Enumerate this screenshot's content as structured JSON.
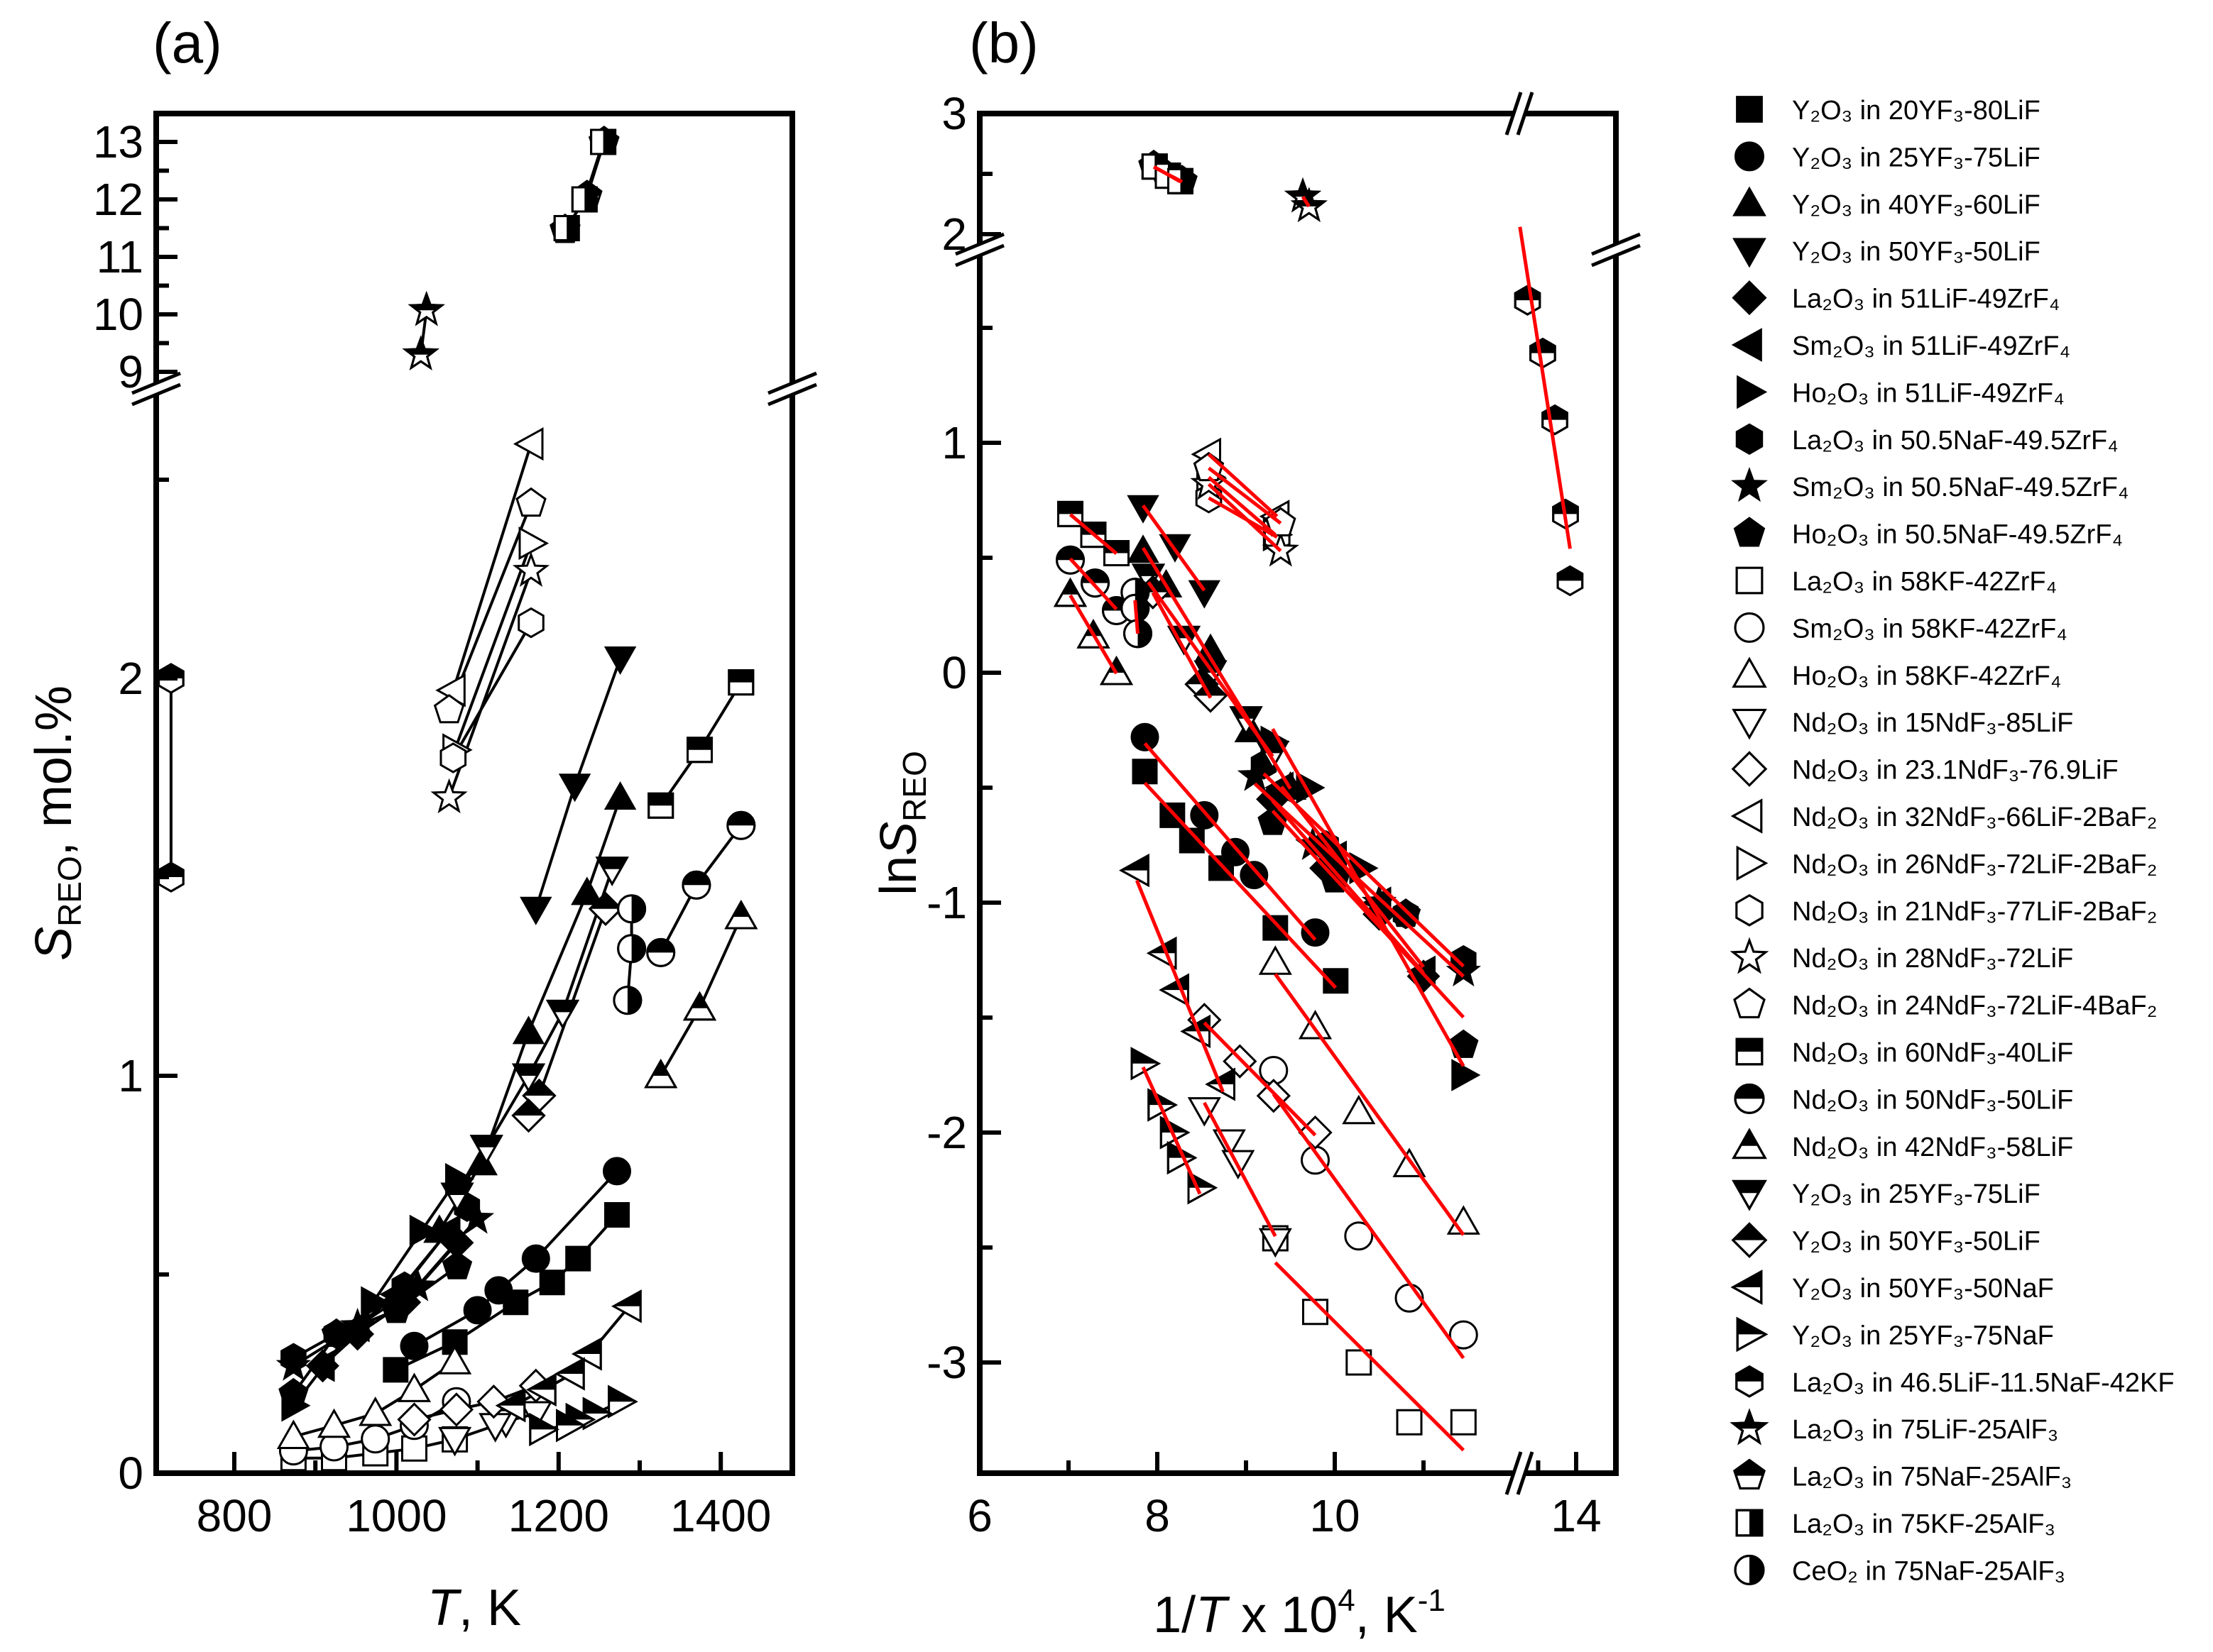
{
  "panels": {
    "a": "(a)",
    "b": "(b)"
  },
  "axis_titles": {
    "a_y": {
      "main": "S",
      "sub": "REO",
      "rest": ", mol.%"
    },
    "a_x": {
      "main": "T",
      "rest": ", K"
    },
    "b_y": {
      "pre": "ln",
      "main": "S",
      "sub": "REO"
    },
    "b_x": {
      "pre": "1/",
      "main": "T",
      "mid": " x 10",
      "sup": "4",
      "rest": ", K",
      "sup2": "-1"
    }
  },
  "colors": {
    "fit_line": "#ff0000",
    "marker": "#000000",
    "connect_line": "#000000"
  },
  "chart_data": [
    {
      "type": "scatter",
      "panel": "a",
      "xlabel": "T, K",
      "ylabel": "S_REO, mol.%",
      "xlim": [
        700,
        1490
      ],
      "x_ticks": [
        800,
        1000,
        1200,
        1400
      ],
      "x_minor": [
        900,
        1100,
        1300
      ],
      "y_broken": true,
      "y_lower_range": [
        0,
        2.72
      ],
      "y_upper_range": [
        9,
        13.5
      ],
      "y_ticks_lower": [
        0,
        1,
        2
      ],
      "y_minor_lower": [
        0.5,
        1.5,
        2.5
      ],
      "y_ticks_upper": [
        9,
        10,
        11,
        12,
        13
      ],
      "y_minor_upper": [
        9.5,
        10.5,
        11.5,
        12.5
      ],
      "lines": "connected points (black)"
    },
    {
      "type": "scatter",
      "panel": "b",
      "xlabel": "1/T x 10^4, K^-1",
      "ylabel": "lnS_REO",
      "x_broken": true,
      "x_main_range": [
        6,
        12.1
      ],
      "x_after_break_range": [
        13.2,
        14.47
      ],
      "x_ticks": [
        6,
        8,
        10,
        14
      ],
      "x_minor": [
        7,
        9,
        11,
        13.5
      ],
      "y_broken": true,
      "y_lower_range": [
        -3.49,
        1.81
      ],
      "y_upper_range": [
        1.91,
        3
      ],
      "y_ticks_lower": [
        -3,
        -2,
        -1,
        0,
        1
      ],
      "y_minor_lower": [
        -2.5,
        -1.5,
        -0.5,
        0.5,
        1.5
      ],
      "y_ticks_upper": [
        2,
        3
      ],
      "y_minor_upper": [
        2.5
      ],
      "lines": "linear fits (red)"
    }
  ],
  "legend": {
    "placement": "right"
  },
  "series": [
    {
      "label": "Y₂O₃ in 20YF₃-80LiF",
      "marker": "square",
      "fill": "filled",
      "a": [
        [
          1272,
          0.65
        ],
        [
          1224,
          0.54
        ],
        [
          1192,
          0.48
        ],
        [
          1147,
          0.43
        ],
        [
          1072,
          0.33
        ],
        [
          999,
          0.26
        ]
      ],
      "b": [
        [
          7.86,
          -0.43
        ],
        [
          8.17,
          -0.62
        ],
        [
          8.39,
          -0.73
        ],
        [
          8.72,
          -0.85
        ],
        [
          9.33,
          -1.11
        ],
        [
          10.01,
          -1.34
        ]
      ]
    },
    {
      "label": "Y₂O₃ in 25YF₃-75LiF",
      "marker": "circle",
      "fill": "filled",
      "a": [
        [
          1272,
          0.76
        ],
        [
          1172,
          0.54
        ],
        [
          1126,
          0.46
        ],
        [
          1100,
          0.41
        ],
        [
          1022,
          0.32
        ]
      ],
      "b": [
        [
          7.86,
          -0.28
        ],
        [
          8.53,
          -0.62
        ],
        [
          8.88,
          -0.78
        ],
        [
          9.09,
          -0.88
        ],
        [
          9.78,
          -1.13
        ]
      ]
    },
    {
      "label": "Y₂O₃ in 40YF₃-60LiF",
      "marker": "triangle-up",
      "fill": "filled",
      "a": [
        [
          1276,
          1.7
        ],
        [
          1235,
          1.46
        ],
        [
          1163,
          1.11
        ],
        [
          1105,
          0.78
        ],
        [
          1053,
          0.61
        ]
      ],
      "b": [
        [
          7.84,
          0.53
        ],
        [
          8.1,
          0.38
        ],
        [
          8.6,
          0.1
        ],
        [
          9.05,
          -0.25
        ],
        [
          9.5,
          -0.5
        ]
      ]
    },
    {
      "label": "Y₂O₃ in 50YF₃-50LiF",
      "marker": "triangle-down",
      "fill": "filled",
      "a": [
        [
          1276,
          2.05
        ],
        [
          1220,
          1.73
        ],
        [
          1172,
          1.42
        ]
      ],
      "b": [
        [
          7.84,
          0.72
        ],
        [
          8.2,
          0.55
        ],
        [
          8.53,
          0.35
        ]
      ]
    },
    {
      "label": "La₂O₃ in 51LiF-49ZrF₄",
      "marker": "diamond",
      "fill": "filled",
      "a": [
        [
          1075,
          0.58
        ],
        [
          1010,
          0.43
        ],
        [
          952,
          0.35
        ],
        [
          909,
          0.27
        ]
      ],
      "b": [
        [
          9.3,
          -0.55
        ],
        [
          9.9,
          -0.85
        ],
        [
          10.5,
          -1.05
        ],
        [
          11.0,
          -1.32
        ]
      ]
    },
    {
      "label": "Sm₂O₃ in 51LiF-49ZrF₄",
      "marker": "triangle-left",
      "fill": "filled",
      "a": [
        [
          1064,
          0.61
        ],
        [
          1000,
          0.45
        ],
        [
          952,
          0.37
        ],
        [
          909,
          0.27
        ]
      ],
      "b": [
        [
          9.4,
          -0.5
        ],
        [
          10.0,
          -0.8
        ],
        [
          10.5,
          -1.0
        ],
        [
          11.0,
          -1.3
        ]
      ]
    },
    {
      "label": "Ho₂O₃ in 51LiF-49ZrF₄",
      "marker": "triangle-right",
      "fill": "filled",
      "a": [
        [
          1075,
          0.74
        ],
        [
          1031,
          0.61
        ],
        [
          971,
          0.43
        ],
        [
          873,
          0.17
        ]
      ],
      "b": [
        [
          9.3,
          -0.3
        ],
        [
          9.7,
          -0.5
        ],
        [
          10.3,
          -0.85
        ],
        [
          11.45,
          -1.75
        ]
      ]
    },
    {
      "label": "La₂O₃ in 50.5NaF-49.5ZrF₄",
      "marker": "hexagon",
      "fill": "filled",
      "a": [
        [
          1087,
          0.67
        ],
        [
          1010,
          0.47
        ],
        [
          926,
          0.35
        ],
        [
          873,
          0.29
        ]
      ],
      "b": [
        [
          9.2,
          -0.4
        ],
        [
          9.9,
          -0.75
        ],
        [
          10.8,
          -1.05
        ],
        [
          11.45,
          -1.25
        ]
      ]
    },
    {
      "label": "Sm₂O₃ in 50.5NaF-49.5ZrF₄",
      "marker": "star",
      "fill": "filled",
      "a": [
        [
          1099,
          0.64
        ],
        [
          1026,
          0.47
        ],
        [
          952,
          0.37
        ],
        [
          873,
          0.27
        ]
      ],
      "b": [
        [
          9.1,
          -0.45
        ],
        [
          9.75,
          -0.75
        ],
        [
          10.5,
          -1.0
        ],
        [
          11.45,
          -1.3
        ]
      ]
    },
    {
      "label": "Ho₂O₃ in 50.5NaF-49.5ZrF₄",
      "marker": "pentagon",
      "fill": "filled",
      "a": [
        [
          1075,
          0.52
        ],
        [
          1000,
          0.41
        ],
        [
          926,
          0.35
        ],
        [
          873,
          0.2
        ]
      ],
      "b": [
        [
          9.3,
          -0.65
        ],
        [
          10.0,
          -0.9
        ],
        [
          10.8,
          -1.05
        ],
        [
          11.45,
          -1.62
        ]
      ]
    },
    {
      "label": "La₂O₃ in 58KF-42ZrF₄",
      "marker": "square",
      "fill": "open",
      "a": [
        [
          1072,
          0.085
        ],
        [
          1022,
          0.062
        ],
        [
          974,
          0.05
        ],
        [
          923,
          0.038
        ],
        [
          873,
          0.038
        ]
      ],
      "b": [
        [
          9.33,
          -2.46
        ],
        [
          9.78,
          -2.78
        ],
        [
          10.27,
          -3.0
        ],
        [
          10.84,
          -3.26
        ],
        [
          11.45,
          -3.26
        ]
      ]
    },
    {
      "label": "Sm₂O₃ in 58KF-42ZrF₄",
      "marker": "circle",
      "fill": "open",
      "a": [
        [
          1074,
          0.18
        ],
        [
          1022,
          0.12
        ],
        [
          974,
          0.086
        ],
        [
          923,
          0.066
        ],
        [
          873,
          0.056
        ]
      ],
      "b": [
        [
          9.31,
          -1.73
        ],
        [
          9.78,
          -2.12
        ],
        [
          10.27,
          -2.45
        ],
        [
          10.84,
          -2.72
        ],
        [
          11.45,
          -2.88
        ]
      ]
    },
    {
      "label": "Ho₂O₃ in 58KF-42ZrF₄",
      "marker": "triangle-up",
      "fill": "open",
      "a": [
        [
          1072,
          0.28
        ],
        [
          1022,
          0.21
        ],
        [
          974,
          0.15
        ],
        [
          923,
          0.12
        ],
        [
          873,
          0.092
        ]
      ],
      "b": [
        [
          9.33,
          -1.26
        ],
        [
          9.78,
          -1.54
        ],
        [
          10.27,
          -1.91
        ],
        [
          10.84,
          -2.14
        ],
        [
          11.45,
          -2.39
        ]
      ]
    },
    {
      "label": "Nd₂O₃ in 15NdF₃-85LiF",
      "marker": "triangle-down",
      "fill": "open",
      "a": [
        [
          1172,
          0.15
        ],
        [
          1135,
          0.13
        ],
        [
          1122,
          0.12
        ],
        [
          1072,
          0.085
        ]
      ],
      "b": [
        [
          8.53,
          -1.9
        ],
        [
          8.81,
          -2.04
        ],
        [
          8.91,
          -2.13
        ],
        [
          9.33,
          -2.47
        ]
      ]
    },
    {
      "label": "Nd₂O₃ in 23.1NdF₃-76.9LiF",
      "marker": "diamond",
      "fill": "open",
      "a": [
        [
          1172,
          0.22
        ],
        [
          1120,
          0.18
        ],
        [
          1074,
          0.16
        ],
        [
          1022,
          0.135
        ]
      ],
      "b": [
        [
          8.53,
          -1.51
        ],
        [
          8.93,
          -1.69
        ],
        [
          9.31,
          -1.84
        ],
        [
          9.78,
          -2.0
        ]
      ]
    },
    {
      "label": "Nd₂O₃ in 32NdF₃-66LiF-2BaF₂",
      "marker": "triangle-left",
      "fill": "open",
      "a": [
        [
          1166,
          2.59
        ],
        [
          1070,
          1.97
        ]
      ],
      "b": [
        [
          8.58,
          0.95
        ],
        [
          9.35,
          0.68
        ]
      ]
    },
    {
      "label": "Nd₂O₃ in 26NdF₃-72LiF-2BaF₂",
      "marker": "triangle-right",
      "fill": "open",
      "a": [
        [
          1166,
          2.34
        ],
        [
          1072,
          1.82
        ]
      ],
      "b": [
        [
          8.58,
          0.85
        ],
        [
          9.33,
          0.6
        ]
      ]
    },
    {
      "label": "Nd₂O₃ in 21NdF₃-77LiF-2BaF₂",
      "marker": "hexagon",
      "fill": "open",
      "a": [
        [
          1166,
          2.14
        ],
        [
          1070,
          1.8
        ]
      ],
      "b": [
        [
          8.58,
          0.76
        ],
        [
          9.35,
          0.59
        ]
      ]
    },
    {
      "label": "Nd₂O₃ in 28NdF₃-72LiF",
      "marker": "star",
      "fill": "open",
      "a": [
        [
          1166,
          2.27
        ],
        [
          1065,
          1.7
        ]
      ],
      "b": [
        [
          8.58,
          0.82
        ],
        [
          9.39,
          0.53
        ]
      ]
    },
    {
      "label": "Nd₂O₃ in 24NdF₃-72LiF-4BaF₂",
      "marker": "pentagon",
      "fill": "open",
      "a": [
        [
          1166,
          2.44
        ],
        [
          1065,
          1.92
        ]
      ],
      "b": [
        [
          8.58,
          0.89
        ],
        [
          9.39,
          0.65
        ]
      ]
    },
    {
      "label": "Nd₂O₃ in 60NdF₃-40LiF",
      "marker": "square",
      "fill": "top",
      "a": [
        [
          1425,
          1.99
        ],
        [
          1374,
          1.82
        ],
        [
          1326,
          1.68
        ]
      ],
      "b": [
        [
          7.02,
          0.69
        ],
        [
          7.28,
          0.6
        ],
        [
          7.54,
          0.52
        ]
      ]
    },
    {
      "label": "Nd₂O₃ in 50NdF₃-50LiF",
      "marker": "circle",
      "fill": "top",
      "a": [
        [
          1425,
          1.63
        ],
        [
          1370,
          1.48
        ],
        [
          1326,
          1.31
        ]
      ],
      "b": [
        [
          7.02,
          0.49
        ],
        [
          7.3,
          0.39
        ],
        [
          7.54,
          0.27
        ]
      ]
    },
    {
      "label": "Nd₂O₃ in 42NdF₃-58LiF",
      "marker": "triangle-up",
      "fill": "top",
      "a": [
        [
          1425,
          1.4
        ],
        [
          1374,
          1.17
        ],
        [
          1326,
          1.0
        ]
      ],
      "b": [
        [
          7.02,
          0.34
        ],
        [
          7.28,
          0.16
        ],
        [
          7.54,
          0.0
        ]
      ]
    },
    {
      "label": "Y₂O₃ in 25YF₃-75LiF",
      "marker": "triangle-down",
      "fill": "top",
      "a": [
        [
          1266,
          1.52
        ],
        [
          1205,
          1.16
        ],
        [
          1163,
          1.0
        ],
        [
          1111,
          0.82
        ],
        [
          1075,
          0.7
        ]
      ],
      "b": [
        [
          7.9,
          0.42
        ],
        [
          8.3,
          0.15
        ],
        [
          8.6,
          0.0
        ],
        [
          9.0,
          -0.2
        ],
        [
          9.3,
          -0.35
        ]
      ]
    },
    {
      "label": "Y₂O₃ in 50YF₃-50LiF",
      "marker": "diamond",
      "fill": "top",
      "a": [
        [
          1258,
          1.42
        ],
        [
          1176,
          0.95
        ],
        [
          1163,
          0.9
        ]
      ],
      "b": [
        [
          7.95,
          0.35
        ],
        [
          8.5,
          -0.05
        ],
        [
          8.6,
          -0.1
        ]
      ]
    },
    {
      "label": "Y₂O₃ in 50YF₃-50NaF",
      "marker": "triangle-left",
      "fill": "top",
      "a": [
        [
          1287,
          0.42
        ],
        [
          1238,
          0.3
        ],
        [
          1217,
          0.25
        ],
        [
          1182,
          0.21
        ],
        [
          1144,
          0.17
        ]
      ],
      "b": [
        [
          7.77,
          -0.86
        ],
        [
          8.08,
          -1.22
        ],
        [
          8.22,
          -1.38
        ],
        [
          8.46,
          -1.56
        ],
        [
          8.74,
          -1.79
        ]
      ]
    },
    {
      "label": "Y₂O₃ in 25YF₃-75NaF",
      "marker": "triangle-right",
      "fill": "top",
      "a": [
        [
          1276,
          0.18
        ],
        [
          1245,
          0.15
        ],
        [
          1224,
          0.135
        ],
        [
          1212,
          0.12
        ],
        [
          1179,
          0.11
        ]
      ],
      "b": [
        [
          7.84,
          -1.7
        ],
        [
          8.03,
          -1.88
        ],
        [
          8.17,
          -2.0
        ],
        [
          8.25,
          -2.11
        ],
        [
          8.48,
          -2.24
        ]
      ]
    },
    {
      "label": "La₂O₃ in 46.5LiF-11.5NaF-42KF",
      "marker": "hexagon",
      "fill": "top",
      "a": [
        [
          722,
          2.0
        ],
        [
          722,
          1.5
        ]
      ],
      "b": [
        [
          13.36,
          1.62
        ],
        [
          13.56,
          1.39
        ],
        [
          13.72,
          1.1
        ],
        [
          13.86,
          0.69
        ],
        [
          13.92,
          0.4
        ]
      ]
    },
    {
      "label": "La₂O₃ in 75LiF-25AlF₃",
      "marker": "star",
      "fill": "top",
      "a": [
        [
          1037,
          10.07
        ],
        [
          1030,
          9.3
        ]
      ],
      "b": [
        [
          9.64,
          2.31
        ],
        [
          9.71,
          2.23
        ]
      ]
    },
    {
      "label": "La₂O₃ in 75NaF-25AlF₃",
      "marker": "pentagon",
      "fill": "top",
      "a": [
        [
          1256,
          13.0
        ],
        [
          1235,
          12.06
        ],
        [
          1208,
          11.47
        ]
      ],
      "b": [
        [
          7.96,
          2.565
        ],
        [
          8.1,
          2.49
        ],
        [
          8.28,
          2.44
        ]
      ]
    },
    {
      "label": "La₂O₃ in 75KF-25AlF₃",
      "marker": "square",
      "fill": "right",
      "a": [
        [
          1255,
          13.0
        ],
        [
          1232,
          12.0
        ],
        [
          1210,
          11.5
        ]
      ],
      "b": [
        [
          7.97,
          2.56
        ],
        [
          8.12,
          2.485
        ],
        [
          8.26,
          2.44
        ]
      ]
    },
    {
      "label": "CeO₂ in 75NaF-25AlF₃",
      "marker": "circle",
      "fill": "right",
      "a": [
        [
          1290,
          1.42
        ],
        [
          1290,
          1.32
        ],
        [
          1285,
          1.19
        ]
      ],
      "b": [
        [
          7.75,
          0.35
        ],
        [
          7.75,
          0.28
        ],
        [
          7.78,
          0.17
        ]
      ]
    }
  ]
}
